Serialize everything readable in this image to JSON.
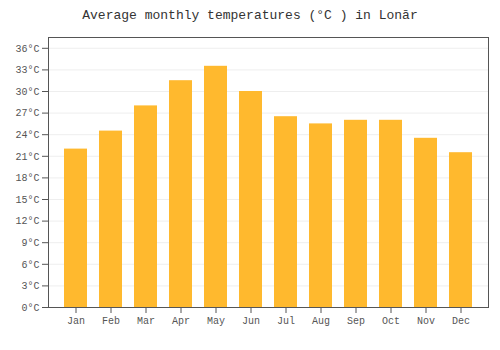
{
  "chart_data": {
    "type": "bar",
    "title": "Average monthly temperatures (°C ) in Lonār",
    "categories": [
      "Jan",
      "Feb",
      "Mar",
      "Apr",
      "May",
      "Jun",
      "Jul",
      "Aug",
      "Sep",
      "Oct",
      "Nov",
      "Dec"
    ],
    "values": [
      22,
      24.5,
      28,
      31.5,
      33.5,
      30,
      26.5,
      25.5,
      26,
      26,
      23.5,
      21.5
    ],
    "color": "#FFB92E",
    "ylim": [
      0,
      37.5
    ],
    "yticks": [
      {
        "value": 0,
        "label": "0°C"
      },
      {
        "value": 3,
        "label": "3°C"
      },
      {
        "value": 6,
        "label": "6°C"
      },
      {
        "value": 9,
        "label": "9°C"
      },
      {
        "value": 12,
        "label": "12°C"
      },
      {
        "value": 15,
        "label": "15°C"
      },
      {
        "value": 18,
        "label": "18°C"
      },
      {
        "value": 21,
        "label": "21°C"
      },
      {
        "value": 24,
        "label": "24°C"
      },
      {
        "value": 27,
        "label": "27°C"
      },
      {
        "value": 30,
        "label": "30°C"
      },
      {
        "value": 33,
        "label": "33°C"
      },
      {
        "value": 36,
        "label": "36°C"
      }
    ],
    "grid": true
  }
}
